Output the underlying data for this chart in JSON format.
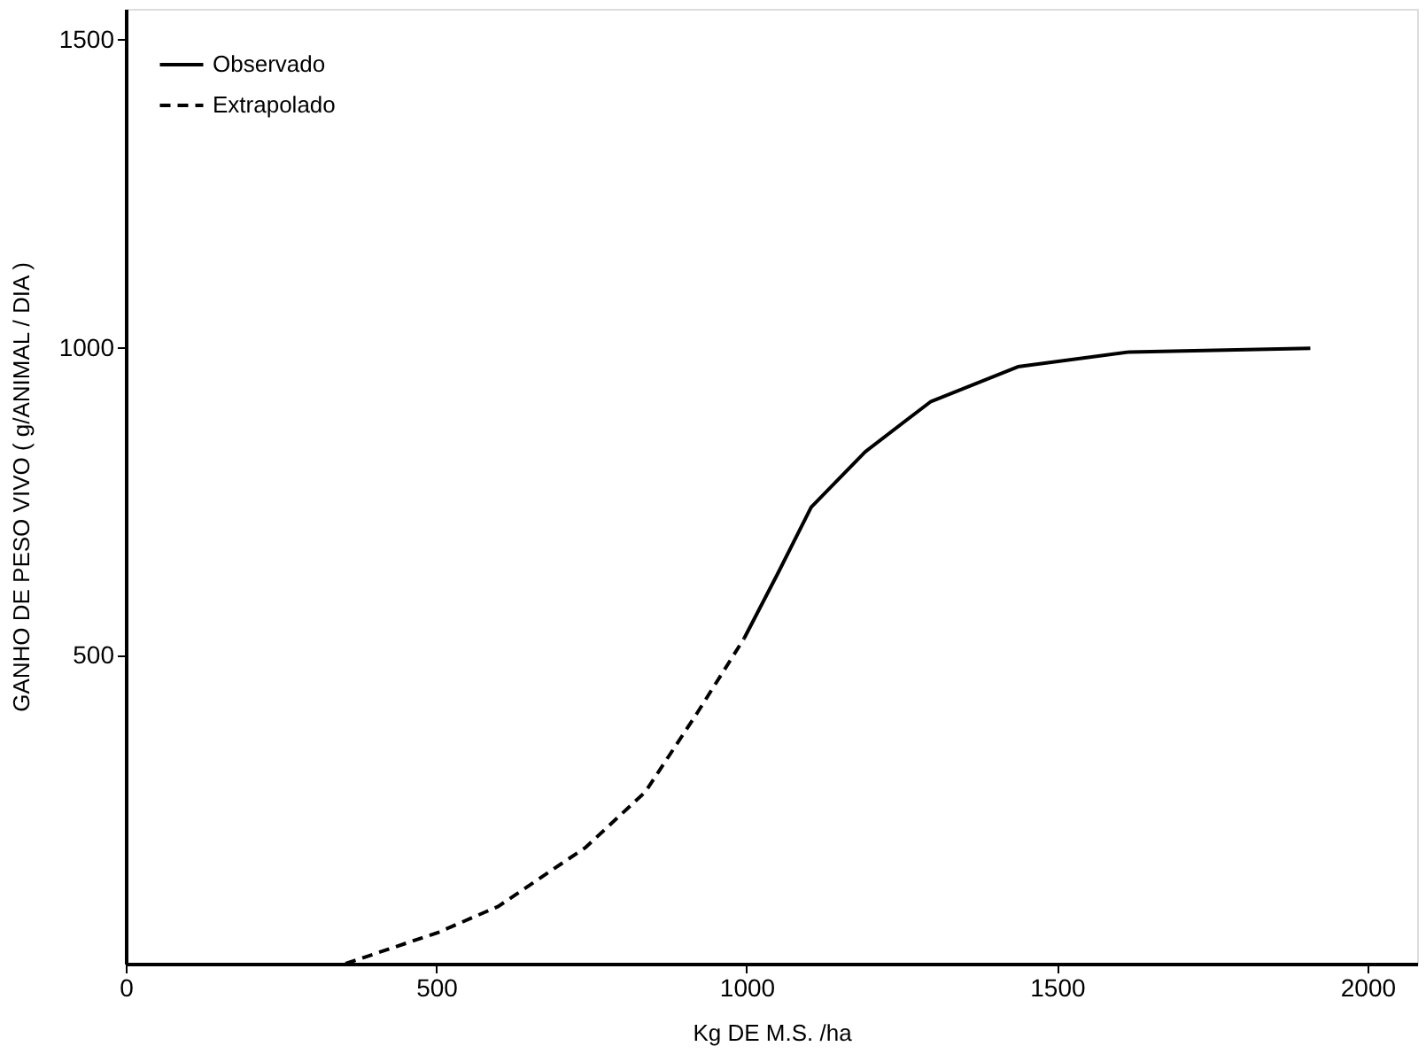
{
  "chart_data": {
    "type": "line",
    "xlabel": "Kg  DE  M.S. /ha",
    "ylabel": "GANHO DE PESO VIVO  ( g/ANIMAL / DIA )",
    "xlim": [
      0,
      2080
    ],
    "ylim": [
      0,
      1550
    ],
    "xticks": [
      0,
      500,
      1000,
      1500,
      2000
    ],
    "yticks": [
      500,
      1000,
      1500
    ],
    "grid": false,
    "legend": "top left",
    "marker": "none",
    "series": [
      {
        "name": "Observado",
        "color": "#000000",
        "line_style": "solid",
        "x": [
          996,
          1050,
          1104,
          1191,
          1296,
          1437,
          1617,
          1908
        ],
        "values": [
          528,
          633,
          741,
          831,
          912,
          969,
          993,
          999
        ]
      },
      {
        "name": "Extrapolado",
        "color": "#000000",
        "line_style": "dashed",
        "x": [
          354,
          504,
          600,
          741,
          837,
          921,
          996
        ],
        "values": [
          0,
          51,
          93,
          189,
          279,
          408,
          528
        ]
      }
    ]
  }
}
